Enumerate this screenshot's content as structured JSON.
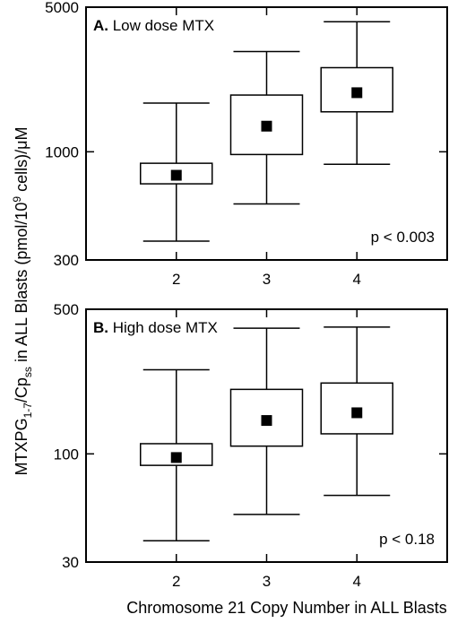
{
  "chart_data": [
    {
      "type": "box",
      "panel_letter": "A.",
      "title": "Low dose MTX",
      "scale": "log",
      "ylim": [
        300,
        5000
      ],
      "yticks": [
        300,
        1000,
        5000
      ],
      "ytick_labels": [
        "300",
        "1000",
        "5000"
      ],
      "categories": [
        "2",
        "3",
        "4"
      ],
      "boxes": [
        {
          "category": "2",
          "whisker_low": 370,
          "q1": 700,
          "median": 770,
          "q3": 880,
          "whisker_high": 1720
        },
        {
          "category": "3",
          "whisker_low": 560,
          "q1": 970,
          "median": 1330,
          "q3": 1880,
          "whisker_high": 3050
        },
        {
          "category": "4",
          "whisker_low": 870,
          "q1": 1560,
          "median": 1930,
          "q3": 2550,
          "whisker_high": 4250
        }
      ],
      "annotation": "p < 0.003",
      "grid": false
    },
    {
      "type": "box",
      "panel_letter": "B.",
      "title": "High dose MTX",
      "scale": "log",
      "ylim": [
        30,
        500
      ],
      "yticks": [
        30,
        100,
        500
      ],
      "ytick_labels": [
        "30",
        "100",
        "500"
      ],
      "categories": [
        "2",
        "3",
        "4"
      ],
      "boxes": [
        {
          "category": "2",
          "whisker_low": 38,
          "q1": 88,
          "median": 96,
          "q3": 112,
          "whisker_high": 255
        },
        {
          "category": "3",
          "whisker_low": 51,
          "q1": 109,
          "median": 145,
          "q3": 205,
          "whisker_high": 405
        },
        {
          "category": "4",
          "whisker_low": 63,
          "q1": 125,
          "median": 158,
          "q3": 220,
          "whisker_high": 410
        }
      ],
      "annotation": "p < 0.18",
      "grid": false
    }
  ],
  "y_axis_label": {
    "main": "MTXPG",
    "sub1": "1-7",
    "mid": "/Cp",
    "sub2": "ss",
    "rest1": " in ALL Blasts (pmol/10",
    "sup": "9",
    "rest2": " cells)/μM"
  },
  "x_axis_label": "Chromosome 21 Copy Number in ALL Blasts",
  "colors": {
    "ink": "#000000",
    "box_fill": "#ffffff",
    "marker": "#000000"
  }
}
